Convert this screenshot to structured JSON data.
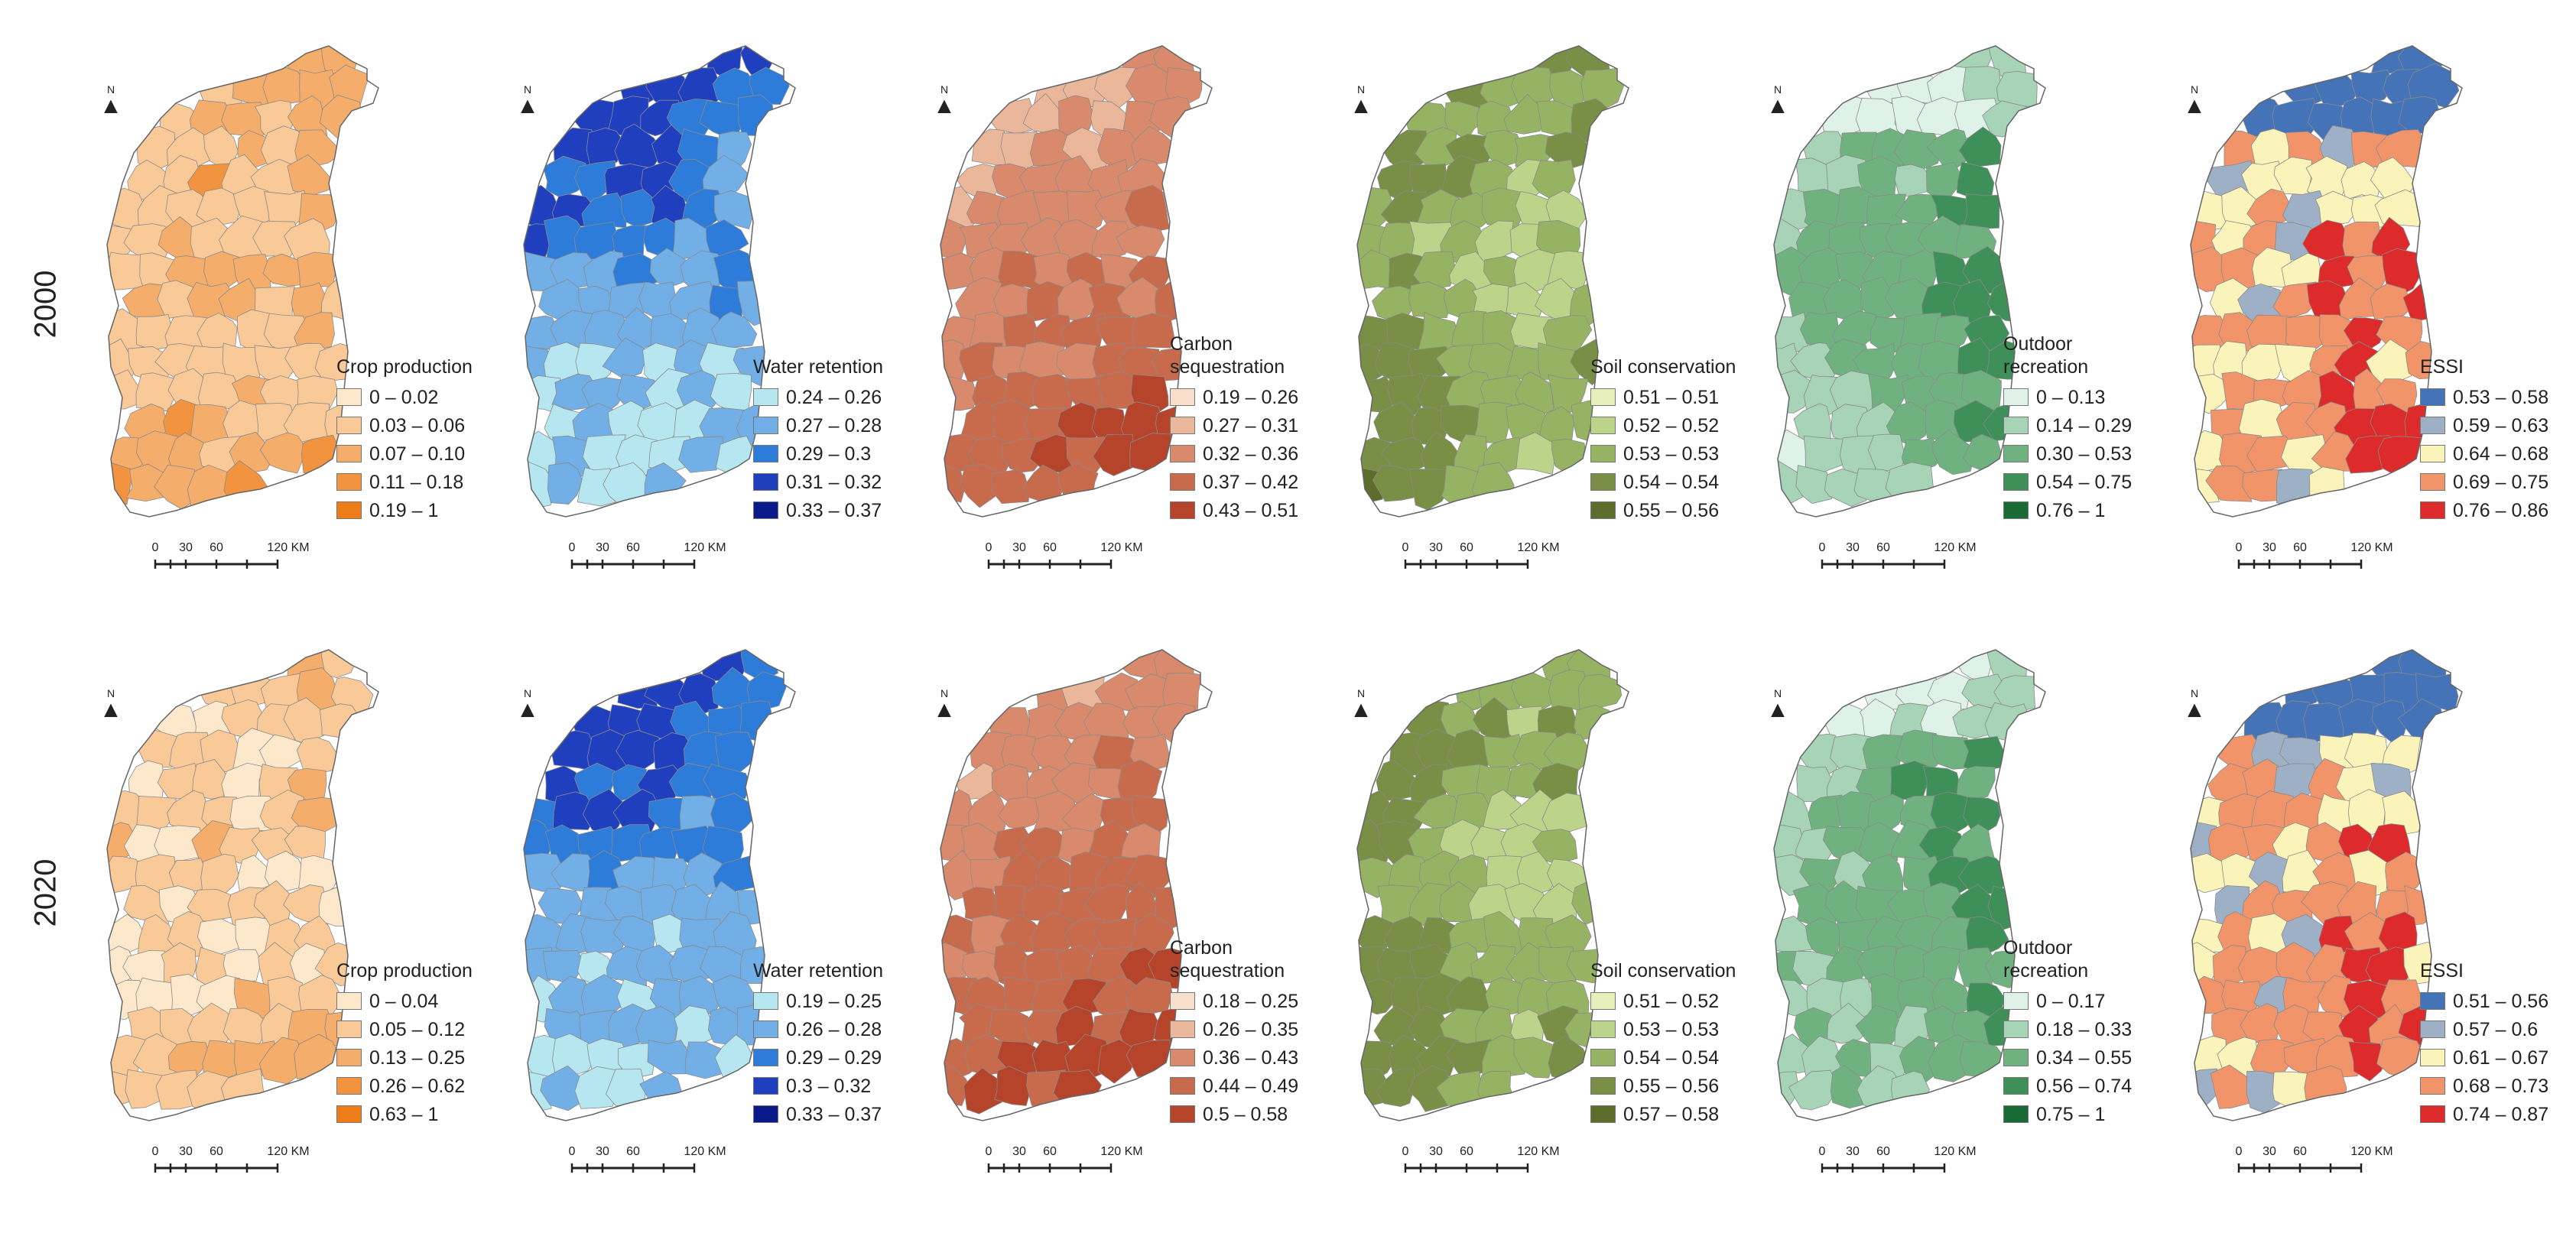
{
  "years": [
    "2000",
    "2020"
  ],
  "north_label": "N",
  "scale_bar": {
    "ticks": [
      "0",
      "30",
      "60",
      "120 KM"
    ]
  },
  "rows": [
    {
      "year": "2000",
      "panels": [
        {
          "name": "crop-production",
          "title_lines": [
            "Crop production"
          ],
          "classes": [
            "0 – 0.02",
            "0.03 – 0.06",
            "0.07 – 0.10",
            "0.11 – 0.18",
            "0.19 – 1"
          ],
          "colors": [
            "#fde8cc",
            "#f9c997",
            "#f5ad6b",
            "#f2933f",
            "#ed7d18"
          ]
        },
        {
          "name": "water-retention",
          "title_lines": [
            "Water retention"
          ],
          "classes": [
            "0.24 – 0.26",
            "0.27 – 0.28",
            "0.29 – 0.3",
            "0.31 – 0.32",
            "0.33 – 0.37"
          ],
          "colors": [
            "#b6e6ef",
            "#72afe6",
            "#2e7cd9",
            "#1f3fbf",
            "#0a1a8a"
          ]
        },
        {
          "name": "carbon-sequestration",
          "title_lines": [
            "Carbon",
            "sequestration"
          ],
          "classes": [
            "0.19 – 0.26",
            "0.27 – 0.31",
            "0.32 – 0.36",
            "0.37 – 0.42",
            "0.43 – 0.51"
          ],
          "colors": [
            "#f8dfcc",
            "#ebb79b",
            "#d98a6c",
            "#c86a4c",
            "#b5442b"
          ]
        },
        {
          "name": "soil-conservation",
          "title_lines": [
            "Soil conservation"
          ],
          "classes": [
            "0.51 – 0.51",
            "0.52 – 0.52",
            "0.53 – 0.53",
            "0.54 – 0.54",
            "0.55 – 0.56"
          ],
          "colors": [
            "#e6efb9",
            "#bcd38a",
            "#96b364",
            "#788f45",
            "#5c6d2c"
          ]
        },
        {
          "name": "outdoor-recreation",
          "title_lines": [
            "Outdoor",
            "recreation"
          ],
          "classes": [
            "0 – 0.13",
            "0.14 – 0.29",
            "0.30 – 0.53",
            "0.54 – 0.75",
            "0.76 – 1"
          ],
          "colors": [
            "#dff2e8",
            "#a7d3b6",
            "#6fb27f",
            "#3f8f58",
            "#1a6a35"
          ]
        },
        {
          "name": "essi",
          "title_lines": [
            "ESSI"
          ],
          "classes": [
            "0.53 – 0.58",
            "0.59 – 0.63",
            "0.64 – 0.68",
            "0.69 – 0.75",
            "0.76 – 0.86"
          ],
          "colors": [
            "#4573b8",
            "#9eb0c5",
            "#fbf4ba",
            "#f2946a",
            "#dd2a2a"
          ]
        }
      ]
    },
    {
      "year": "2020",
      "panels": [
        {
          "name": "crop-production",
          "title_lines": [
            "Crop production"
          ],
          "classes": [
            "0 – 0.04",
            "0.05 – 0.12",
            "0.13 – 0.25",
            "0.26 – 0.62",
            "0.63 – 1"
          ],
          "colors": [
            "#fde8cc",
            "#f9c997",
            "#f5ad6b",
            "#f2933f",
            "#ed7d18"
          ]
        },
        {
          "name": "water-retention",
          "title_lines": [
            "Water retention"
          ],
          "classes": [
            "0.19 – 0.25",
            "0.26 – 0.28",
            "0.29 – 0.29",
            "0.3 – 0.32",
            "0.33 – 0.37"
          ],
          "colors": [
            "#b6e6ef",
            "#72afe6",
            "#2e7cd9",
            "#1f3fbf",
            "#0a1a8a"
          ]
        },
        {
          "name": "carbon-sequestration",
          "title_lines": [
            "Carbon",
            "sequestration"
          ],
          "classes": [
            "0.18 – 0.25",
            "0.26 – 0.35",
            "0.36 – 0.43",
            "0.44 – 0.49",
            "0.5 – 0.58"
          ],
          "colors": [
            "#f8dfcc",
            "#ebb79b",
            "#d98a6c",
            "#c86a4c",
            "#b5442b"
          ]
        },
        {
          "name": "soil-conservation",
          "title_lines": [
            "Soil conservation"
          ],
          "classes": [
            "0.51 – 0.52",
            "0.53 – 0.53",
            "0.54 – 0.54",
            "0.55 – 0.56",
            "0.57 – 0.58"
          ],
          "colors": [
            "#e6efb9",
            "#bcd38a",
            "#96b364",
            "#788f45",
            "#5c6d2c"
          ]
        },
        {
          "name": "outdoor-recreation",
          "title_lines": [
            "Outdoor",
            "recreation"
          ],
          "classes": [
            "0 – 0.17",
            "0.18 – 0.33",
            "0.34 – 0.55",
            "0.56 – 0.74",
            "0.75 – 1"
          ],
          "colors": [
            "#dff2e8",
            "#a7d3b6",
            "#6fb27f",
            "#3f8f58",
            "#1a6a35"
          ]
        },
        {
          "name": "essi",
          "title_lines": [
            "ESSI"
          ],
          "classes": [
            "0.51 – 0.56",
            "0.57 – 0.6",
            "0.61 – 0.67",
            "0.68 – 0.73",
            "0.74 – 0.87"
          ],
          "colors": [
            "#4573b8",
            "#9eb0c5",
            "#fbf4ba",
            "#f2946a",
            "#dd2a2a"
          ]
        }
      ]
    }
  ]
}
